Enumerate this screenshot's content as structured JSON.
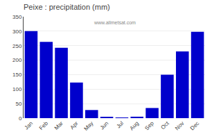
{
  "chart_data": {
    "type": "bar",
    "title": "Peixe : precipitation (mm)",
    "categories": [
      "Jan",
      "Feb",
      "Mar",
      "Apr",
      "May",
      "Jun",
      "Jul",
      "Aug",
      "Sep",
      "Oct",
      "Nov",
      "Dec"
    ],
    "values": [
      300,
      263,
      243,
      123,
      28,
      3,
      2,
      5,
      35,
      150,
      230,
      298
    ],
    "color": "#0000cc",
    "ylim": [
      0,
      350
    ],
    "yticks": [
      0,
      50,
      100,
      150,
      200,
      250,
      300,
      350
    ],
    "grid": true,
    "annotations": [
      "www.allmetsat.com"
    ]
  }
}
